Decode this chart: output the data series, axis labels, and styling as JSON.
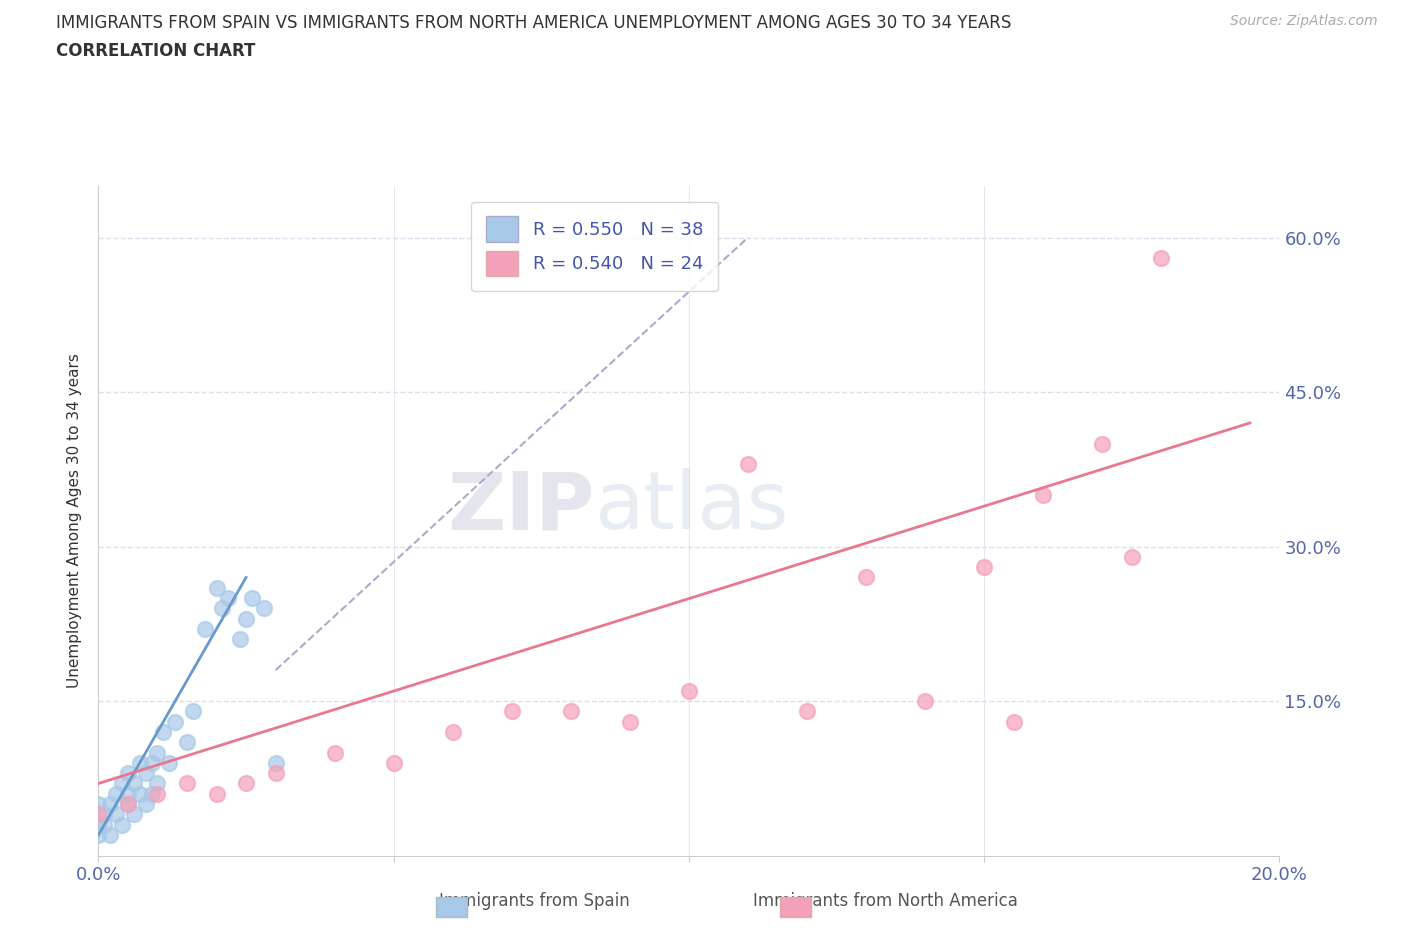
{
  "title_line1": "IMMIGRANTS FROM SPAIN VS IMMIGRANTS FROM NORTH AMERICA UNEMPLOYMENT AMONG AGES 30 TO 34 YEARS",
  "title_line2": "CORRELATION CHART",
  "source": "Source: ZipAtlas.com",
  "ylabel": "Unemployment Among Ages 30 to 34 years",
  "xlim": [
    0.0,
    0.2
  ],
  "ylim": [
    0.0,
    0.65
  ],
  "xticks": [
    0.0,
    0.05,
    0.1,
    0.15,
    0.2
  ],
  "yticks": [
    0.0,
    0.15,
    0.3,
    0.45,
    0.6
  ],
  "R_spain": 0.55,
  "N_spain": 38,
  "R_north_america": 0.54,
  "N_north_america": 24,
  "color_spain": "#a8c8e8",
  "color_north_america": "#f4a0b8",
  "color_spain_line": "#6699cc",
  "color_north_america_line": "#e87890",
  "color_dashed_line": "#aaaacc",
  "spain_scatter_x": [
    0.0,
    0.0,
    0.0,
    0.001,
    0.001,
    0.002,
    0.002,
    0.003,
    0.003,
    0.004,
    0.004,
    0.005,
    0.005,
    0.005,
    0.006,
    0.006,
    0.007,
    0.007,
    0.008,
    0.008,
    0.009,
    0.009,
    0.01,
    0.01,
    0.011,
    0.012,
    0.013,
    0.015,
    0.016,
    0.018,
    0.02,
    0.021,
    0.022,
    0.024,
    0.025,
    0.026,
    0.028,
    0.03
  ],
  "spain_scatter_y": [
    0.02,
    0.03,
    0.05,
    0.03,
    0.04,
    0.02,
    0.05,
    0.04,
    0.06,
    0.03,
    0.07,
    0.05,
    0.06,
    0.08,
    0.04,
    0.07,
    0.06,
    0.09,
    0.05,
    0.08,
    0.06,
    0.09,
    0.07,
    0.1,
    0.12,
    0.09,
    0.13,
    0.11,
    0.14,
    0.22,
    0.26,
    0.24,
    0.25,
    0.21,
    0.23,
    0.25,
    0.24,
    0.09
  ],
  "spain_line_x": [
    0.0,
    0.025
  ],
  "spain_line_y": [
    0.02,
    0.27
  ],
  "dashed_line_x": [
    0.03,
    0.11
  ],
  "dashed_line_y": [
    0.18,
    0.6
  ],
  "north_america_scatter_x": [
    0.0,
    0.005,
    0.01,
    0.015,
    0.02,
    0.025,
    0.03,
    0.04,
    0.05,
    0.06,
    0.07,
    0.08,
    0.09,
    0.1,
    0.11,
    0.12,
    0.13,
    0.14,
    0.15,
    0.155,
    0.16,
    0.17,
    0.175,
    0.18
  ],
  "north_america_scatter_y": [
    0.04,
    0.05,
    0.06,
    0.07,
    0.06,
    0.07,
    0.08,
    0.1,
    0.09,
    0.12,
    0.14,
    0.14,
    0.13,
    0.16,
    0.38,
    0.14,
    0.27,
    0.15,
    0.28,
    0.13,
    0.35,
    0.4,
    0.29,
    0.58
  ],
  "north_america_line_x": [
    0.0,
    0.195
  ],
  "north_america_line_y": [
    0.07,
    0.42
  ],
  "watermark_zip": "ZIP",
  "watermark_atlas": "atlas",
  "background_color": "#ffffff",
  "grid_color": "#ddddee"
}
